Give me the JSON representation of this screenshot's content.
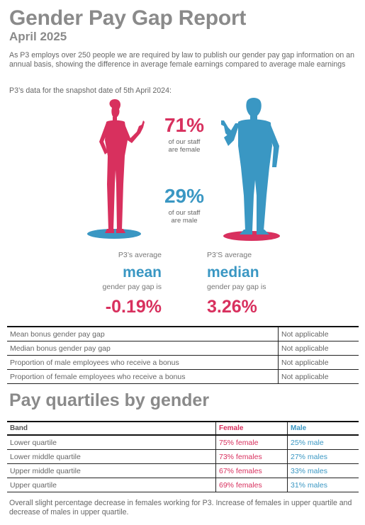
{
  "header": {
    "title": "Gender Pay Gap Report",
    "subtitle": "April 2025"
  },
  "intro": "As P3 employs over 250 people we are required by law to publish our gender pay gap information on an annual basis, showing the difference in average female earnings compared to average male earnings",
  "snapshot": "P3’s data for the snapshot date of 5th April 2024:",
  "staff": {
    "female_pct": "71%",
    "female_line1": "of our staff",
    "female_line2": "are female",
    "male_pct": "29%",
    "male_line1": "of our staff",
    "male_line2": "are male"
  },
  "pay_gap": {
    "mean_label": "P3’s average",
    "mean_word": "mean",
    "mean_sub": "gender pay gap is",
    "mean_value": "-0.19%",
    "median_label": "P3’S average",
    "median_word": "median",
    "median_sub": "gender pay gap is",
    "median_value": "3.26%"
  },
  "bonus_rows": [
    {
      "label": "Mean bonus gender pay gap",
      "value": "Not applicable"
    },
    {
      "label": "Median bonus gender pay gap",
      "value": "Not applicable"
    },
    {
      "label": "Proportion of male employees who receive a bonus",
      "value": "Not applicable"
    },
    {
      "label": "Proportion of female employees who receive a bonus",
      "value": "Not applicable"
    }
  ],
  "quartiles": {
    "title": "Pay quartiles by gender",
    "headers": {
      "band": "Band",
      "female": "Female",
      "male": "Male"
    },
    "rows": [
      {
        "band": "Lower quartile",
        "female": "75% female",
        "male": "25% male"
      },
      {
        "band": "Lower middle quartile",
        "female": "73% females",
        "male": "27% males"
      },
      {
        "band": "Upper middle quartile",
        "female": "67% females",
        "male": "33% males"
      },
      {
        "band": "Upper quartile",
        "female": "69% females",
        "male": "31% males"
      }
    ]
  },
  "footer": "Overall slight percentage decrease in females working for P3. Increase of females in upper quartile and decrease of males in upper quartile.",
  "colors": {
    "female": "#d8305e",
    "male": "#3a97c3",
    "heading": "#8a8a8a"
  }
}
